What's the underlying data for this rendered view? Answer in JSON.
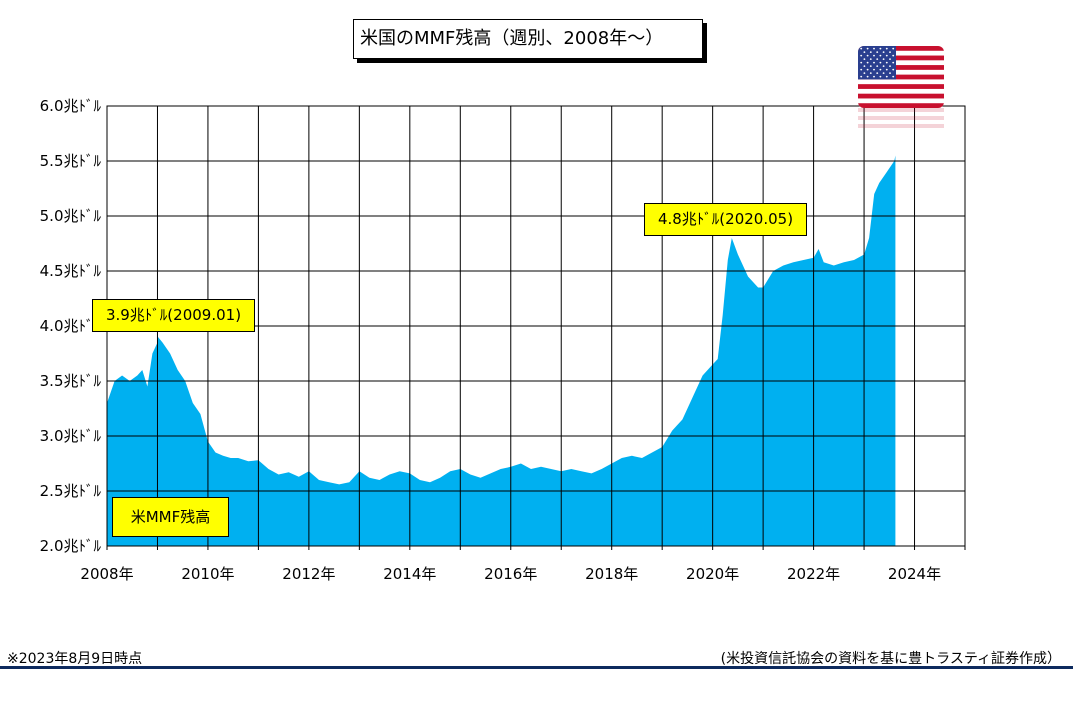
{
  "title": "米国のMMF残高（週別、2008年～）",
  "note": "※2023年8月9日時点",
  "source": "(米投資信託協会の資料を基に豊トラスティ証券作成）",
  "flag_icon": "us-flag-icon",
  "colors": {
    "area": "#00b0f0",
    "callout": "#ffff00",
    "grid": "#000000",
    "footer_line": "#0d2a5e"
  },
  "chart_data": {
    "type": "area",
    "series": [
      {
        "name": "米MMF残高",
        "x": [
          2008.0,
          2008.15,
          2008.3,
          2008.45,
          2008.6,
          2008.7,
          2008.8,
          2008.9,
          2009.0,
          2009.01,
          2009.1,
          2009.25,
          2009.4,
          2009.55,
          2009.7,
          2009.85,
          2010.0,
          2010.15,
          2010.3,
          2010.45,
          2010.6,
          2010.8,
          2011.0,
          2011.2,
          2011.4,
          2011.6,
          2011.8,
          2012.0,
          2012.2,
          2012.4,
          2012.6,
          2012.8,
          2013.0,
          2013.2,
          2013.4,
          2013.6,
          2013.8,
          2014.0,
          2014.2,
          2014.4,
          2014.6,
          2014.8,
          2015.0,
          2015.2,
          2015.4,
          2015.6,
          2015.8,
          2016.0,
          2016.2,
          2016.4,
          2016.6,
          2016.8,
          2017.0,
          2017.2,
          2017.4,
          2017.6,
          2017.8,
          2018.0,
          2018.2,
          2018.4,
          2018.6,
          2018.8,
          2019.0,
          2019.2,
          2019.4,
          2019.6,
          2019.8,
          2020.0,
          2020.1,
          2020.2,
          2020.3,
          2020.38,
          2020.5,
          2020.7,
          2020.9,
          2021.0,
          2021.2,
          2021.4,
          2021.6,
          2021.8,
          2022.0,
          2022.1,
          2022.2,
          2022.4,
          2022.6,
          2022.8,
          2023.0,
          2023.1,
          2023.2,
          2023.3,
          2023.45,
          2023.6,
          2023.62
        ],
        "y": [
          3.3,
          3.5,
          3.55,
          3.5,
          3.55,
          3.6,
          3.45,
          3.75,
          3.85,
          3.9,
          3.85,
          3.75,
          3.6,
          3.5,
          3.3,
          3.2,
          2.95,
          2.85,
          2.82,
          2.8,
          2.8,
          2.77,
          2.78,
          2.7,
          2.65,
          2.67,
          2.63,
          2.68,
          2.6,
          2.58,
          2.56,
          2.58,
          2.68,
          2.62,
          2.6,
          2.65,
          2.68,
          2.66,
          2.6,
          2.58,
          2.62,
          2.68,
          2.7,
          2.65,
          2.62,
          2.66,
          2.7,
          2.72,
          2.75,
          2.7,
          2.72,
          2.7,
          2.68,
          2.7,
          2.68,
          2.66,
          2.7,
          2.75,
          2.8,
          2.82,
          2.8,
          2.85,
          2.9,
          3.05,
          3.15,
          3.35,
          3.55,
          3.65,
          3.7,
          4.1,
          4.6,
          4.8,
          4.65,
          4.45,
          4.35,
          4.35,
          4.5,
          4.55,
          4.58,
          4.6,
          4.62,
          4.7,
          4.58,
          4.55,
          4.58,
          4.6,
          4.65,
          4.8,
          5.2,
          5.3,
          5.4,
          5.5,
          5.55
        ]
      }
    ],
    "xlim": [
      2008,
      2025
    ],
    "ylim": [
      2.0,
      6.0
    ],
    "x_ticks": [
      2008,
      2010,
      2012,
      2014,
      2016,
      2018,
      2020,
      2022,
      2024
    ],
    "x_tick_labels": [
      "2008年",
      "2010年",
      "2012年",
      "2014年",
      "2016年",
      "2018年",
      "2020年",
      "2022年",
      "2024年"
    ],
    "y_ticks": [
      2.0,
      2.5,
      3.0,
      3.5,
      4.0,
      4.5,
      5.0,
      5.5,
      6.0
    ],
    "y_tick_labels": [
      "2.0兆ﾄﾞﾙ",
      "2.5兆ﾄﾞﾙ",
      "3.0兆ﾄﾞﾙ",
      "3.5兆ﾄﾞﾙ",
      "4.0兆ﾄﾞﾙ",
      "4.5兆ﾄﾞﾙ",
      "5.0兆ﾄﾞﾙ",
      "5.5兆ﾄﾞﾙ",
      "6.0兆ﾄﾞﾙ"
    ],
    "grid": true,
    "annotations": [
      {
        "text": "3.9兆ﾄﾞﾙ(2009.01)",
        "x": 2009.01,
        "y": 3.9
      },
      {
        "text": "4.8兆ﾄﾞﾙ(2020.05)",
        "x": 2020.38,
        "y": 4.8
      }
    ],
    "legend_label": "米MMF残高"
  }
}
